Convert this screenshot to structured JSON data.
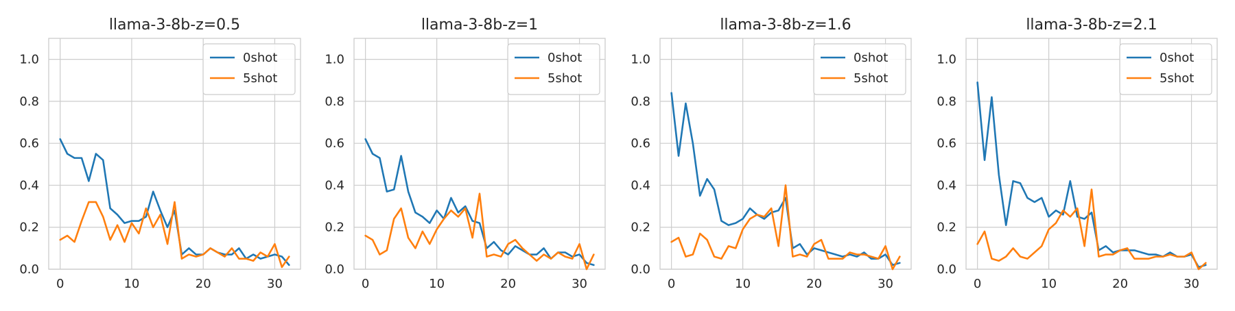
{
  "chart_data": [
    {
      "type": "line",
      "title": "llama-3-8b-z=0.5",
      "xlabel": "",
      "ylabel": "",
      "xlim": [
        -1.6,
        33.6
      ],
      "ylim": [
        0,
        1.1
      ],
      "xticks": [
        0,
        10,
        20,
        30
      ],
      "yticks": [
        0.0,
        0.2,
        0.4,
        0.6,
        0.8,
        1.0
      ],
      "grid": true,
      "legend": "upper right",
      "series": [
        {
          "name": "0shot",
          "color": "#1f77b4",
          "x": [
            0,
            1,
            2,
            3,
            4,
            5,
            6,
            7,
            8,
            9,
            10,
            11,
            12,
            13,
            14,
            15,
            16,
            17,
            18,
            19,
            20,
            21,
            22,
            23,
            24,
            25,
            26,
            27,
            28,
            29,
            30,
            31,
            32
          ],
          "values": [
            0.62,
            0.55,
            0.53,
            0.53,
            0.42,
            0.55,
            0.52,
            0.29,
            0.26,
            0.22,
            0.23,
            0.23,
            0.25,
            0.37,
            0.28,
            0.2,
            0.28,
            0.07,
            0.1,
            0.07,
            0.07,
            0.1,
            0.08,
            0.07,
            0.07,
            0.1,
            0.05,
            0.07,
            0.05,
            0.06,
            0.07,
            0.06,
            0.02
          ]
        },
        {
          "name": "5shot",
          "color": "#ff7f0e",
          "x": [
            0,
            1,
            2,
            3,
            4,
            5,
            6,
            7,
            8,
            9,
            10,
            11,
            12,
            13,
            14,
            15,
            16,
            17,
            18,
            19,
            20,
            21,
            22,
            23,
            24,
            25,
            26,
            27,
            28,
            29,
            30,
            31,
            32
          ],
          "values": [
            0.14,
            0.16,
            0.13,
            0.23,
            0.32,
            0.32,
            0.25,
            0.14,
            0.21,
            0.13,
            0.22,
            0.17,
            0.29,
            0.2,
            0.26,
            0.12,
            0.32,
            0.05,
            0.07,
            0.06,
            0.07,
            0.1,
            0.08,
            0.06,
            0.1,
            0.05,
            0.05,
            0.04,
            0.08,
            0.06,
            0.12,
            0.01,
            0.06
          ]
        }
      ]
    },
    {
      "type": "line",
      "title": "llama-3-8b-z=1",
      "xlabel": "",
      "ylabel": "",
      "xlim": [
        -1.6,
        33.6
      ],
      "ylim": [
        0,
        1.1
      ],
      "xticks": [
        0,
        10,
        20,
        30
      ],
      "yticks": [
        0.0,
        0.2,
        0.4,
        0.6,
        0.8,
        1.0
      ],
      "grid": true,
      "legend": "upper right",
      "series": [
        {
          "name": "0shot",
          "color": "#1f77b4",
          "x": [
            0,
            1,
            2,
            3,
            4,
            5,
            6,
            7,
            8,
            9,
            10,
            11,
            12,
            13,
            14,
            15,
            16,
            17,
            18,
            19,
            20,
            21,
            22,
            23,
            24,
            25,
            26,
            27,
            28,
            29,
            30,
            31,
            32
          ],
          "values": [
            0.62,
            0.55,
            0.53,
            0.37,
            0.38,
            0.54,
            0.37,
            0.27,
            0.25,
            0.22,
            0.28,
            0.24,
            0.34,
            0.27,
            0.3,
            0.23,
            0.22,
            0.1,
            0.13,
            0.09,
            0.07,
            0.11,
            0.09,
            0.07,
            0.07,
            0.1,
            0.05,
            0.08,
            0.08,
            0.06,
            0.07,
            0.03,
            0.02
          ]
        },
        {
          "name": "5shot",
          "color": "#ff7f0e",
          "x": [
            0,
            1,
            2,
            3,
            4,
            5,
            6,
            7,
            8,
            9,
            10,
            11,
            12,
            13,
            14,
            15,
            16,
            17,
            18,
            19,
            20,
            21,
            22,
            23,
            24,
            25,
            26,
            27,
            28,
            29,
            30,
            31,
            32
          ],
          "values": [
            0.16,
            0.14,
            0.07,
            0.09,
            0.24,
            0.29,
            0.15,
            0.1,
            0.18,
            0.12,
            0.19,
            0.24,
            0.28,
            0.25,
            0.29,
            0.15,
            0.36,
            0.06,
            0.07,
            0.06,
            0.12,
            0.14,
            0.1,
            0.07,
            0.04,
            0.07,
            0.05,
            0.08,
            0.06,
            0.05,
            0.12,
            0.0,
            0.07
          ]
        }
      ]
    },
    {
      "type": "line",
      "title": "llama-3-8b-z=1.6",
      "xlabel": "",
      "ylabel": "",
      "xlim": [
        -1.6,
        33.6
      ],
      "ylim": [
        0,
        1.1
      ],
      "xticks": [
        0,
        10,
        20,
        30
      ],
      "yticks": [
        0.0,
        0.2,
        0.4,
        0.6,
        0.8,
        1.0
      ],
      "grid": true,
      "legend": "upper right",
      "series": [
        {
          "name": "0shot",
          "color": "#1f77b4",
          "x": [
            0,
            1,
            2,
            3,
            4,
            5,
            6,
            7,
            8,
            9,
            10,
            11,
            12,
            13,
            14,
            15,
            16,
            17,
            18,
            19,
            20,
            21,
            22,
            23,
            24,
            25,
            26,
            27,
            28,
            29,
            30,
            31,
            32
          ],
          "values": [
            0.84,
            0.54,
            0.79,
            0.6,
            0.35,
            0.43,
            0.38,
            0.23,
            0.21,
            0.22,
            0.24,
            0.29,
            0.26,
            0.24,
            0.27,
            0.28,
            0.34,
            0.1,
            0.12,
            0.07,
            0.1,
            0.09,
            0.08,
            0.07,
            0.06,
            0.07,
            0.06,
            0.08,
            0.05,
            0.05,
            0.07,
            0.02,
            0.03
          ]
        },
        {
          "name": "5shot",
          "color": "#ff7f0e",
          "x": [
            0,
            1,
            2,
            3,
            4,
            5,
            6,
            7,
            8,
            9,
            10,
            11,
            12,
            13,
            14,
            15,
            16,
            17,
            18,
            19,
            20,
            21,
            22,
            23,
            24,
            25,
            26,
            27,
            28,
            29,
            30,
            31,
            32
          ],
          "values": [
            0.13,
            0.15,
            0.06,
            0.07,
            0.17,
            0.14,
            0.06,
            0.05,
            0.11,
            0.1,
            0.19,
            0.24,
            0.26,
            0.25,
            0.29,
            0.11,
            0.4,
            0.06,
            0.07,
            0.06,
            0.12,
            0.14,
            0.05,
            0.05,
            0.05,
            0.08,
            0.07,
            0.07,
            0.06,
            0.05,
            0.11,
            0.0,
            0.06
          ]
        }
      ]
    },
    {
      "type": "line",
      "title": "llama-3-8b-z=2.1",
      "xlabel": "",
      "ylabel": "",
      "xlim": [
        -1.6,
        33.6
      ],
      "ylim": [
        0,
        1.1
      ],
      "xticks": [
        0,
        10,
        20,
        30
      ],
      "yticks": [
        0.0,
        0.2,
        0.4,
        0.6,
        0.8,
        1.0
      ],
      "grid": true,
      "legend": "upper right",
      "series": [
        {
          "name": "0shot",
          "color": "#1f77b4",
          "x": [
            0,
            1,
            2,
            3,
            4,
            5,
            6,
            7,
            8,
            9,
            10,
            11,
            12,
            13,
            14,
            15,
            16,
            17,
            18,
            19,
            20,
            21,
            22,
            23,
            24,
            25,
            26,
            27,
            28,
            29,
            30,
            31,
            32
          ],
          "values": [
            0.89,
            0.52,
            0.82,
            0.45,
            0.21,
            0.42,
            0.41,
            0.34,
            0.32,
            0.34,
            0.25,
            0.28,
            0.26,
            0.42,
            0.25,
            0.24,
            0.27,
            0.09,
            0.11,
            0.08,
            0.09,
            0.09,
            0.09,
            0.08,
            0.07,
            0.07,
            0.06,
            0.08,
            0.06,
            0.06,
            0.07,
            0.01,
            0.02
          ]
        },
        {
          "name": "5shot",
          "color": "#ff7f0e",
          "x": [
            0,
            1,
            2,
            3,
            4,
            5,
            6,
            7,
            8,
            9,
            10,
            11,
            12,
            13,
            14,
            15,
            16,
            17,
            18,
            19,
            20,
            21,
            22,
            23,
            24,
            25,
            26,
            27,
            28,
            29,
            30,
            31,
            32
          ],
          "values": [
            0.12,
            0.18,
            0.05,
            0.04,
            0.06,
            0.1,
            0.06,
            0.05,
            0.08,
            0.11,
            0.19,
            0.22,
            0.28,
            0.25,
            0.29,
            0.11,
            0.38,
            0.06,
            0.07,
            0.07,
            0.09,
            0.1,
            0.05,
            0.05,
            0.05,
            0.06,
            0.06,
            0.07,
            0.06,
            0.06,
            0.08,
            0.0,
            0.03
          ]
        }
      ]
    }
  ]
}
